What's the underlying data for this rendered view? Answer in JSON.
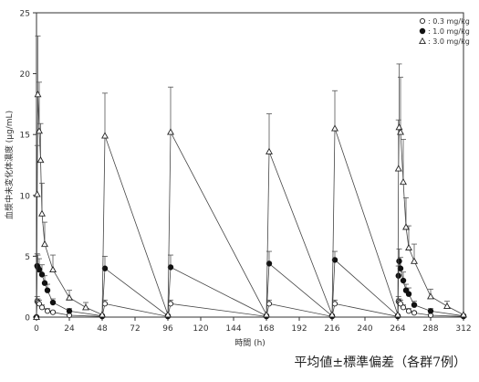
{
  "chart_data": {
    "type": "scatter",
    "xlabel": "時間 (h)",
    "ylabel": "血漿中未変化体濃度 (μg/mL)",
    "xlim": [
      0,
      312
    ],
    "ylim": [
      0,
      25
    ],
    "xticks": [
      0,
      24,
      48,
      72,
      96,
      120,
      144,
      168,
      192,
      216,
      240,
      264,
      288,
      312
    ],
    "yticks": [
      0,
      5,
      10,
      15,
      20,
      25
    ],
    "legend_position": "top-right",
    "series": [
      {
        "name": ": 0.3 mg/kg",
        "marker": "open-circle",
        "points": [
          {
            "x": 0,
            "y": 0
          },
          {
            "x": 0.5,
            "y": 1.3,
            "err": 0.4
          },
          {
            "x": 1,
            "y": 1.2,
            "err": 0.3
          },
          {
            "x": 2,
            "y": 1.1,
            "err": 0.3
          },
          {
            "x": 4,
            "y": 0.8,
            "err": 0.2
          },
          {
            "x": 8,
            "y": 0.5,
            "err": 0.2
          },
          {
            "x": 12,
            "y": 0.4,
            "err": 0.1
          },
          {
            "x": 24,
            "y": 0.15,
            "err": 0.05
          },
          {
            "x": 48,
            "y": 0.05
          },
          {
            "x": 50,
            "y": 1.1,
            "err": 0.3
          },
          {
            "x": 96,
            "y": 0.05
          },
          {
            "x": 98,
            "y": 1.1,
            "err": 0.3
          },
          {
            "x": 168,
            "y": 0.05
          },
          {
            "x": 170,
            "y": 1.1,
            "err": 0.3
          },
          {
            "x": 216,
            "y": 0.05
          },
          {
            "x": 218,
            "y": 1.1,
            "err": 0.3
          },
          {
            "x": 264,
            "y": 0.05
          },
          {
            "x": 264.5,
            "y": 1.3,
            "err": 0.4
          },
          {
            "x": 265,
            "y": 1.2,
            "err": 0.3
          },
          {
            "x": 266,
            "y": 1.1,
            "err": 0.3
          },
          {
            "x": 268,
            "y": 0.8,
            "err": 0.2
          },
          {
            "x": 272,
            "y": 0.5,
            "err": 0.2
          },
          {
            "x": 276,
            "y": 0.35,
            "err": 0.1
          },
          {
            "x": 288,
            "y": 0.15,
            "err": 0.05
          },
          {
            "x": 312,
            "y": 0.05
          }
        ]
      },
      {
        "name": ": 1.0 mg/kg",
        "marker": "filled-circle",
        "points": [
          {
            "x": 0,
            "y": 0
          },
          {
            "x": 0.5,
            "y": 4.2,
            "err": 1.0
          },
          {
            "x": 1,
            "y": 4.1,
            "err": 1.0
          },
          {
            "x": 2,
            "y": 3.9,
            "err": 0.9
          },
          {
            "x": 4,
            "y": 3.5,
            "err": 0.8
          },
          {
            "x": 6,
            "y": 2.8,
            "err": 0.6
          },
          {
            "x": 8,
            "y": 2.2,
            "err": 0.5
          },
          {
            "x": 12,
            "y": 1.2,
            "err": 0.3
          },
          {
            "x": 24,
            "y": 0.5,
            "err": 0.2
          },
          {
            "x": 48,
            "y": 0.1
          },
          {
            "x": 50,
            "y": 4.0,
            "err": 1.0
          },
          {
            "x": 96,
            "y": 0.1
          },
          {
            "x": 98,
            "y": 4.1,
            "err": 1.0
          },
          {
            "x": 168,
            "y": 0.1
          },
          {
            "x": 170,
            "y": 4.4,
            "err": 1.0
          },
          {
            "x": 216,
            "y": 0.1
          },
          {
            "x": 218,
            "y": 4.7,
            "err": 0.7
          },
          {
            "x": 264,
            "y": 0.1
          },
          {
            "x": 264.5,
            "y": 3.4,
            "err": 0.8
          },
          {
            "x": 265,
            "y": 4.6,
            "err": 1.0
          },
          {
            "x": 266,
            "y": 4.0,
            "err": 0.9
          },
          {
            "x": 268,
            "y": 3.0,
            "err": 0.7
          },
          {
            "x": 270,
            "y": 2.2,
            "err": 0.5
          },
          {
            "x": 272,
            "y": 1.9,
            "err": 0.5
          },
          {
            "x": 276,
            "y": 1.0,
            "err": 0.3
          },
          {
            "x": 288,
            "y": 0.5,
            "err": 0.2
          },
          {
            "x": 312,
            "y": 0.1
          }
        ]
      },
      {
        "name": ": 3.0 mg/kg",
        "marker": "open-triangle",
        "points": [
          {
            "x": 0,
            "y": 0
          },
          {
            "x": 0.5,
            "y": 10.1,
            "err": 4.0
          },
          {
            "x": 1,
            "y": 18.3,
            "err": 4.8
          },
          {
            "x": 2,
            "y": 15.3,
            "err": 4.0
          },
          {
            "x": 3,
            "y": 12.9,
            "err": 3.0
          },
          {
            "x": 4,
            "y": 8.5,
            "err": 2.5
          },
          {
            "x": 6,
            "y": 6.0,
            "err": 1.8
          },
          {
            "x": 12,
            "y": 3.9,
            "err": 1.2
          },
          {
            "x": 24,
            "y": 1.6,
            "err": 0.6
          },
          {
            "x": 36,
            "y": 0.8,
            "err": 0.4
          },
          {
            "x": 48,
            "y": 0.2
          },
          {
            "x": 50,
            "y": 14.9,
            "err": 3.5
          },
          {
            "x": 96,
            "y": 0.2
          },
          {
            "x": 98,
            "y": 15.2,
            "err": 3.7
          },
          {
            "x": 168,
            "y": 0.2
          },
          {
            "x": 170,
            "y": 13.6,
            "err": 3.1
          },
          {
            "x": 216,
            "y": 0.2
          },
          {
            "x": 218,
            "y": 15.5,
            "err": 3.1
          },
          {
            "x": 264,
            "y": 0.2
          },
          {
            "x": 264.5,
            "y": 12.2,
            "err": 4.0
          },
          {
            "x": 265,
            "y": 15.6,
            "err": 5.2
          },
          {
            "x": 266,
            "y": 15.2,
            "err": 4.5
          },
          {
            "x": 268,
            "y": 11.1,
            "err": 3.5
          },
          {
            "x": 270,
            "y": 7.4,
            "err": 2.4
          },
          {
            "x": 272,
            "y": 5.7,
            "err": 1.8
          },
          {
            "x": 276,
            "y": 4.6,
            "err": 1.4
          },
          {
            "x": 288,
            "y": 1.7,
            "err": 0.6
          },
          {
            "x": 300,
            "y": 0.9,
            "err": 0.4
          },
          {
            "x": 312,
            "y": 0.2
          }
        ]
      }
    ]
  },
  "footnote": "平均値±標準偏差（各群7例）"
}
